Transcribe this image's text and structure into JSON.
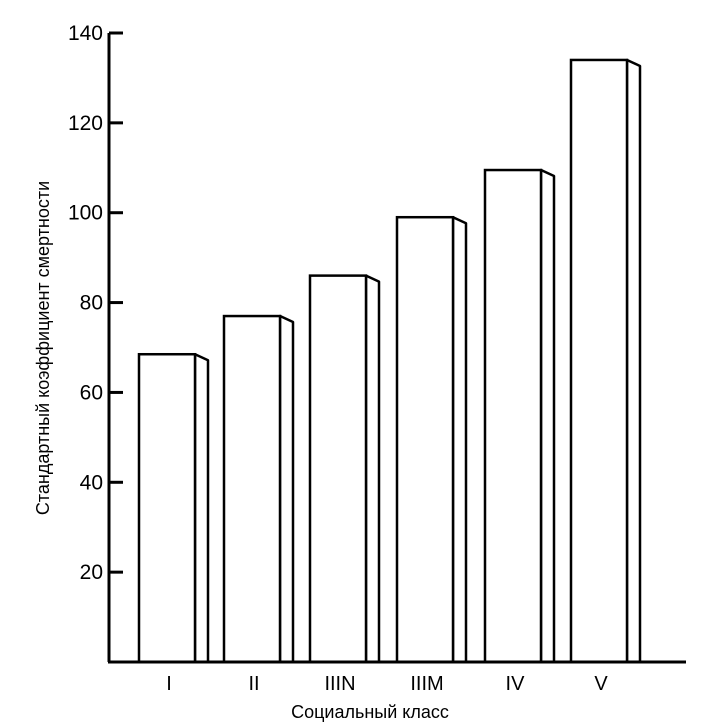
{
  "chart_data": {
    "type": "bar",
    "categories": [
      "I",
      "II",
      "IIIN",
      "IIIM",
      "IV",
      "V"
    ],
    "values": [
      68.5,
      77,
      86,
      99,
      109.5,
      134
    ],
    "xlabel": "Социальный класс",
    "ylabel": "Стандартный коэффициент смертности",
    "ylim": [
      0,
      140
    ],
    "yticks": [
      "20",
      "40",
      "60",
      "80",
      "100",
      "120",
      "140"
    ],
    "grid": false,
    "style": "3d-outline",
    "colors": {
      "bar_fill": "#ffffff",
      "stroke": "#000000"
    }
  }
}
